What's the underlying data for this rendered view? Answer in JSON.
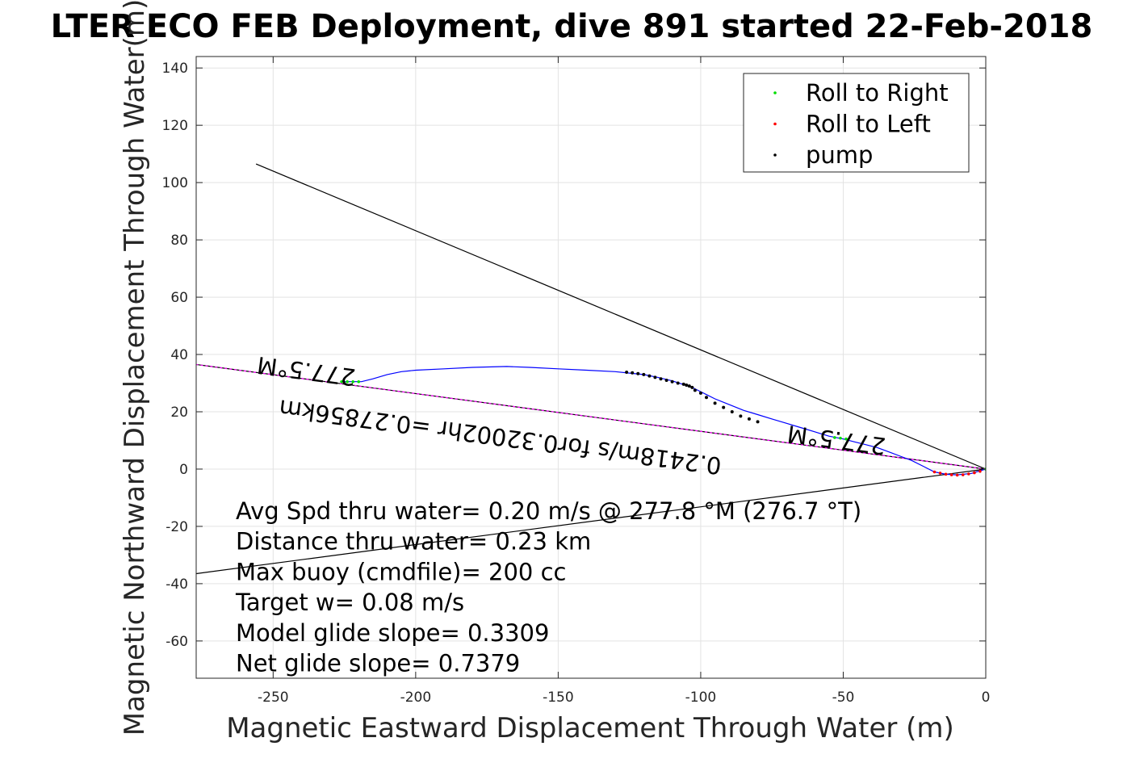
{
  "chart_data": {
    "type": "line",
    "title": "LTER ECO FEB Deployment, dive 891 started 22-Feb-2018",
    "xlabel": "Magnetic Eastward Displacement Through Water (m)",
    "ylabel": "Magnetic Northward Displacement Through Water(m)",
    "xlim": [
      -277,
      0
    ],
    "ylim": [
      -73,
      144
    ],
    "xticks": [
      -250,
      -200,
      -150,
      -100,
      -50,
      0
    ],
    "yticks": [
      -60,
      -40,
      -20,
      0,
      20,
      40,
      60,
      80,
      100,
      120,
      140
    ],
    "grid": true,
    "legend": {
      "position": "top-right",
      "entries": [
        {
          "label": "Roll to Right",
          "color": "#00dd00"
        },
        {
          "label": "Roll to Left",
          "color": "#ff0000"
        },
        {
          "label": "pump",
          "color": "#000000"
        }
      ]
    },
    "track": {
      "color": "#0000ff",
      "x": [
        0,
        -5,
        -10,
        -14,
        -18,
        -22,
        -26,
        -30,
        -34,
        -38,
        -42,
        -46,
        -50,
        -55,
        -60,
        -65,
        -70,
        -75,
        -80,
        -85,
        -90,
        -95,
        -98,
        -101,
        -103,
        -106,
        -110,
        -115,
        -120,
        -125,
        -130,
        -140,
        -150,
        -160,
        -168,
        -180,
        -190,
        -200,
        -205,
        -210,
        -215,
        -219,
        -222,
        -225
      ],
      "y": [
        0,
        -1.5,
        -2,
        -1.8,
        -1,
        1,
        3,
        4.5,
        6,
        7.5,
        8.5,
        9.5,
        10.5,
        11.5,
        13,
        14.5,
        16,
        17.5,
        19,
        20.5,
        22.5,
        24.5,
        26,
        27.5,
        28.5,
        29.5,
        30.8,
        32,
        33,
        33.5,
        34,
        34.5,
        35,
        35.5,
        35.8,
        35.5,
        35,
        34.5,
        34,
        33,
        31.5,
        30.5,
        30.5,
        30.5
      ]
    },
    "pump_points": {
      "color": "#000000",
      "x": [
        -80,
        -83,
        -86,
        -89,
        -92,
        -95,
        -98,
        -100,
        -102,
        -103,
        -104,
        -105,
        -106,
        -108,
        -110,
        -112,
        -114,
        -116,
        -118,
        -120,
        -122,
        -124,
        -126
      ],
      "y": [
        16.5,
        17.5,
        18.5,
        20,
        21.5,
        23,
        25,
        26.5,
        27.5,
        28.5,
        29,
        29.3,
        29.6,
        30,
        30.5,
        31,
        31.5,
        32,
        32.5,
        33,
        33.3,
        33.6,
        33.8
      ]
    },
    "roll_right_points": {
      "color": "#00dd00",
      "x": [
        0,
        -49,
        -51,
        -53,
        -220,
        -222,
        -224,
        -226
      ],
      "y": [
        0,
        10.5,
        10.8,
        11,
        30.5,
        30.5,
        30.5,
        30.5
      ]
    },
    "roll_left_points": {
      "color": "#ff0000",
      "x": [
        -2,
        -4,
        -6,
        -8,
        -10,
        -12,
        -14,
        -16,
        -18
      ],
      "y": [
        -0.8,
        -1.3,
        -1.7,
        -2,
        -2.1,
        -2,
        -1.8,
        -1.4,
        -1
      ]
    },
    "heading_line": {
      "color": "#ff00ff",
      "x": [
        0,
        -277
      ],
      "y": [
        0,
        36.5
      ]
    },
    "envelope_lines": {
      "color": "#000000",
      "upper": {
        "x": [
          0,
          -256
        ],
        "y": [
          0,
          106.5
        ]
      },
      "lower": {
        "x": [
          0,
          -277
        ],
        "y": [
          0,
          -36.5
        ]
      }
    },
    "rotated_labels": [
      {
        "text": "277.5°M",
        "x": -238,
        "y": 37,
        "angle": 187.5
      },
      {
        "text": "277.5°M",
        "x": -52,
        "y": 13,
        "angle": 187.5
      },
      {
        "text": "0.2418m/s for0.32002hr =0.27856km",
        "x": -170,
        "y": 14,
        "angle": 187.5
      }
    ],
    "annotations": [
      "Avg Spd thru water=  0.20 m/s @ 277.8 °M (276.7 °T)",
      "Distance thru water=  0.23 km",
      "Max buoy (cmdfile)= 200 cc",
      "Target w= 0.08 m/s",
      "Model glide slope= 0.3309",
      "Net glide slope= 0.7379"
    ]
  }
}
